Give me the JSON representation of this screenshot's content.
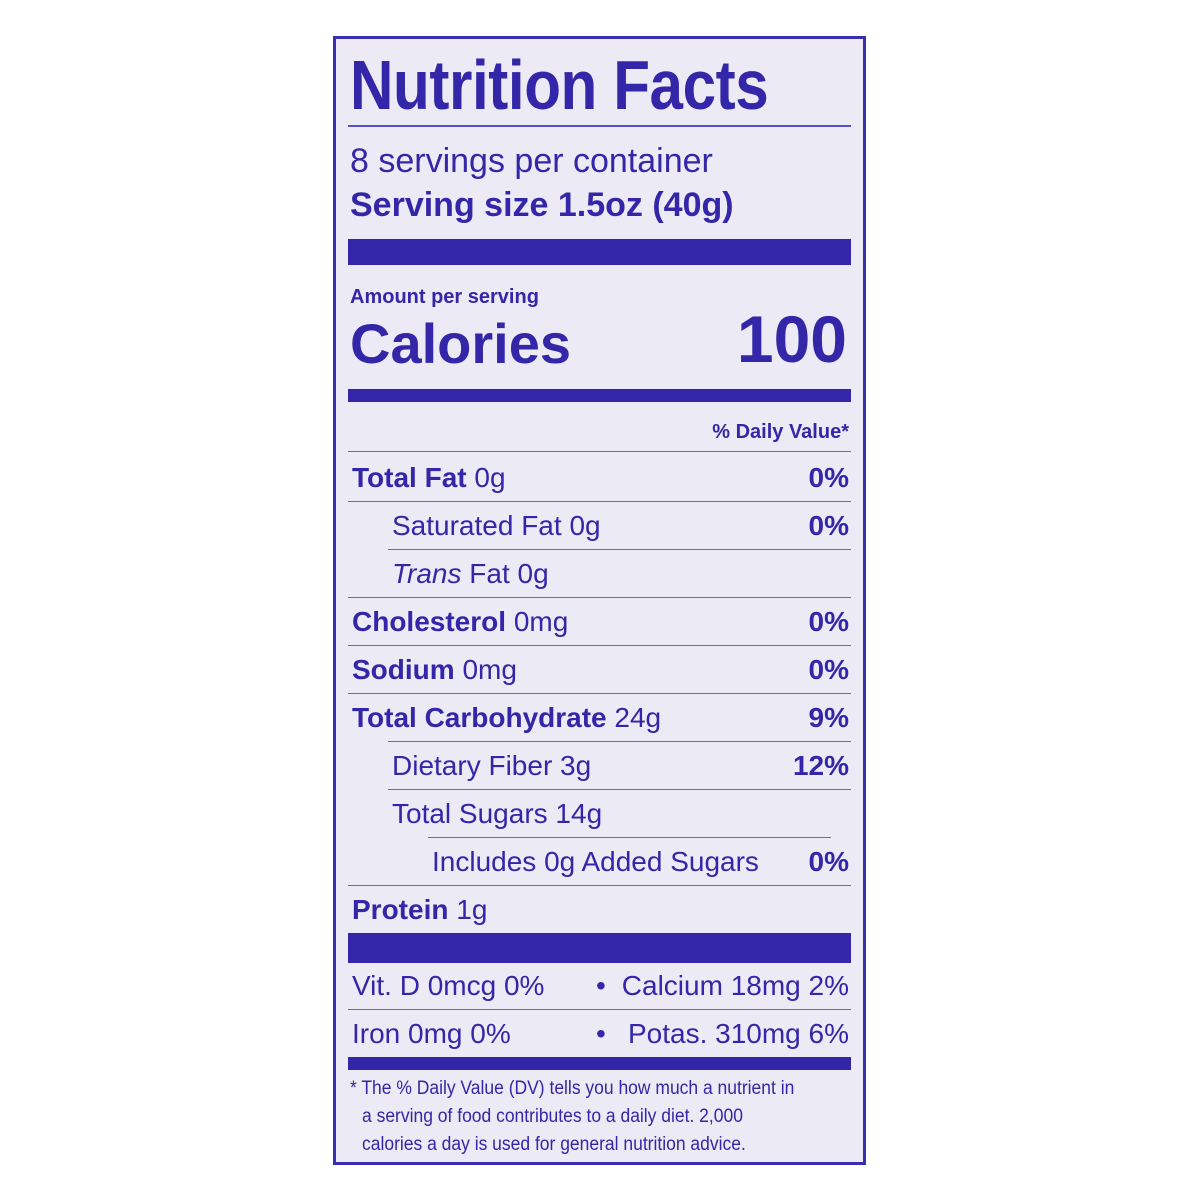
{
  "title": "Nutrition Facts",
  "servings_per_container": "8 servings per container",
  "serving_size_label": "Serving size",
  "serving_size_value": "1.5oz (40g)",
  "amount_per_serving": "Amount per serving",
  "calories_label": "Calories",
  "calories_value": "100",
  "daily_value_header": "% Daily Value*",
  "nutrients": [
    {
      "name": "Total Fat",
      "amount": "0g",
      "dv": "0%"
    },
    {
      "name": "Saturated Fat",
      "amount": "0g",
      "dv": "0%"
    },
    {
      "name": "Trans",
      "name_suffix": "Fat",
      "amount": "0g",
      "dv": ""
    },
    {
      "name": "Cholesterol",
      "amount": "0mg",
      "dv": "0%"
    },
    {
      "name": "Sodium",
      "amount": "0mg",
      "dv": "0%"
    },
    {
      "name": "Total Carbohydrate",
      "amount": "24g",
      "dv": "9%"
    },
    {
      "name": "Dietary Fiber",
      "amount": "3g",
      "dv": "12%"
    },
    {
      "name": "Total Sugars",
      "amount": "14g",
      "dv": ""
    },
    {
      "name": "Includes 0g Added Sugars",
      "amount": "",
      "dv": "0%"
    },
    {
      "name": "Protein",
      "amount": "1g",
      "dv": ""
    }
  ],
  "micronutrients": [
    {
      "left": "Vit. D 0mcg 0%",
      "right": "Calcium 18mg 2%"
    },
    {
      "left": "Iron 0mg 0%",
      "right": "Potas. 310mg 6%"
    }
  ],
  "bullet": "•",
  "footnote": [
    "* The % Daily Value (DV) tells you how much a nutrient in",
    "a serving of food contributes to a daily diet. 2,000",
    "calories a day is used for general nutrition advice."
  ],
  "colors": {
    "ink": "#3326a8",
    "background": "#eceaf4"
  }
}
